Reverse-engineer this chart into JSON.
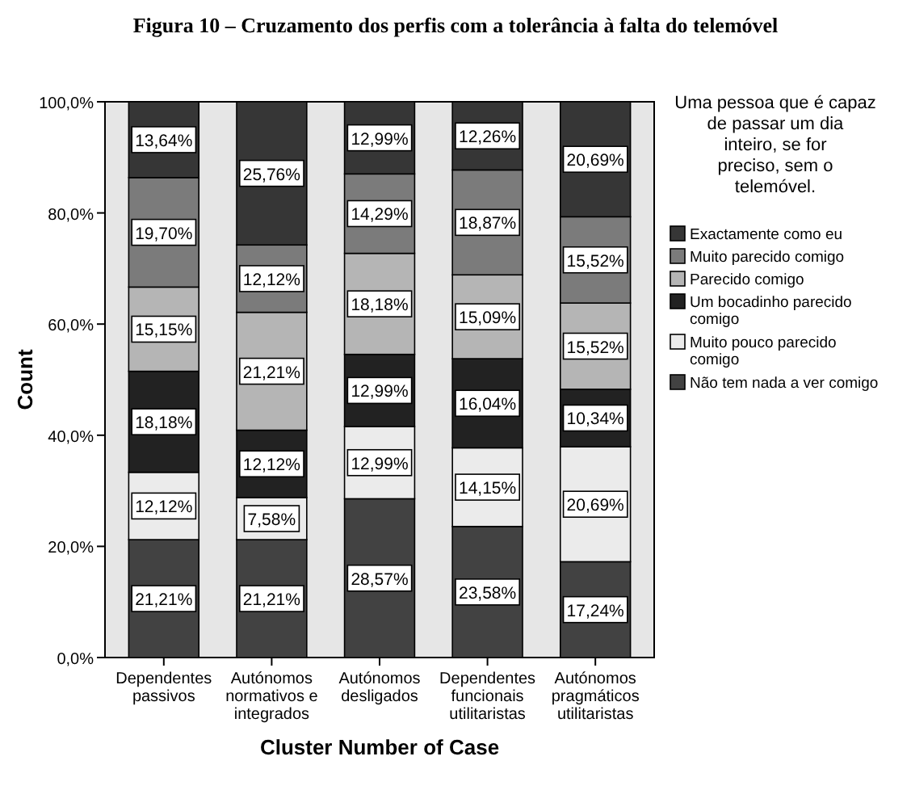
{
  "chart_data": {
    "type": "bar",
    "stacked": true,
    "title": "Figura 10 – Cruzamento dos perfis com a tolerância à falta do telemóvel",
    "xlabel": "Cluster Number of Case",
    "ylabel": "Count",
    "legend_title": "Uma pessoa que é capaz de passar um dia inteiro, se for preciso, sem o telemóvel.",
    "legend": "right",
    "categories": [
      "Dependentes passivos",
      "Autónomos normativos e integrados",
      "Autónomos desligados",
      "Dependentes funcionais utilitaristas",
      "Autónomos pragmáticos utilitaristas"
    ],
    "series": [
      {
        "name": "Não tem nada a ver comigo",
        "color": "#424242",
        "values": [
          21.21,
          21.21,
          28.57,
          23.58,
          17.24
        ],
        "value_labels": [
          "21,21%",
          "21,21%",
          "28,57%",
          "23,58%",
          "17,24%"
        ]
      },
      {
        "name": "Muito pouco parecido comigo",
        "color": "#ebebeb",
        "values": [
          12.12,
          7.58,
          12.99,
          14.15,
          20.69
        ],
        "value_labels": [
          "12,12%",
          "7,58%",
          "12,99%",
          "14,15%",
          "20,69%"
        ]
      },
      {
        "name": "Um bocadinho parecido comigo",
        "color": "#222222",
        "values": [
          18.18,
          12.12,
          12.99,
          16.04,
          10.34
        ],
        "value_labels": [
          "18,18%",
          "12,12%",
          "12,99%",
          "16,04%",
          "10,34%"
        ]
      },
      {
        "name": "Parecido comigo",
        "color": "#b5b5b5",
        "values": [
          15.15,
          21.21,
          18.18,
          15.09,
          15.52
        ],
        "value_labels": [
          "15,15%",
          "21,21%",
          "18,18%",
          "15,09%",
          "15,52%"
        ]
      },
      {
        "name": "Muito parecido comigo",
        "color": "#7b7b7b",
        "values": [
          19.7,
          12.12,
          14.29,
          18.87,
          15.52
        ],
        "value_labels": [
          "19,70%",
          "12,12%",
          "14,29%",
          "18,87%",
          "15,52%"
        ]
      },
      {
        "name": "Exactamente como eu",
        "color": "#363636",
        "values": [
          13.64,
          25.76,
          12.99,
          12.26,
          20.69
        ],
        "value_labels": [
          "13,64%",
          "25,76%",
          "12,99%",
          "12,26%",
          "20,69%"
        ]
      }
    ],
    "ylim": [
      0,
      100
    ],
    "yticks": [
      {
        "value": 0,
        "label": "0,0%"
      },
      {
        "value": 20,
        "label": "20,0%"
      },
      {
        "value": 40,
        "label": "40,0%"
      },
      {
        "value": 60,
        "label": "60,0%"
      },
      {
        "value": 80,
        "label": "80,0%"
      },
      {
        "value": 100,
        "label": "100,0%"
      }
    ]
  }
}
